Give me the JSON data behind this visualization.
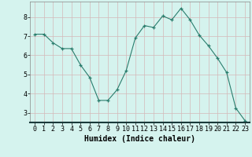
{
  "x": [
    0,
    1,
    2,
    3,
    4,
    5,
    6,
    7,
    8,
    9,
    10,
    11,
    12,
    13,
    14,
    15,
    16,
    17,
    18,
    19,
    20,
    21,
    22,
    23
  ],
  "y": [
    7.1,
    7.1,
    6.65,
    6.35,
    6.35,
    5.5,
    4.85,
    3.65,
    3.65,
    4.2,
    5.2,
    6.9,
    7.55,
    7.45,
    8.05,
    7.85,
    8.45,
    7.85,
    7.05,
    6.5,
    5.85,
    5.1,
    3.25,
    2.6
  ],
  "xlabel": "Humidex (Indice chaleur)",
  "line_color": "#2a7d6d",
  "marker_color": "#2a7d6d",
  "bg_color": "#d5f3ee",
  "grid_color_h": "#d4b8b8",
  "grid_color_v": "#d4b8b8",
  "ylim": [
    2.5,
    8.8
  ],
  "xlim": [
    -0.5,
    23.5
  ],
  "yticks": [
    3,
    4,
    5,
    6,
    7,
    8
  ],
  "xticks": [
    0,
    1,
    2,
    3,
    4,
    5,
    6,
    7,
    8,
    9,
    10,
    11,
    12,
    13,
    14,
    15,
    16,
    17,
    18,
    19,
    20,
    21,
    22,
    23
  ],
  "bottom_bar_color": "#1a3a3a",
  "xlabel_fontsize": 7.0,
  "tick_fontsize": 6.0
}
